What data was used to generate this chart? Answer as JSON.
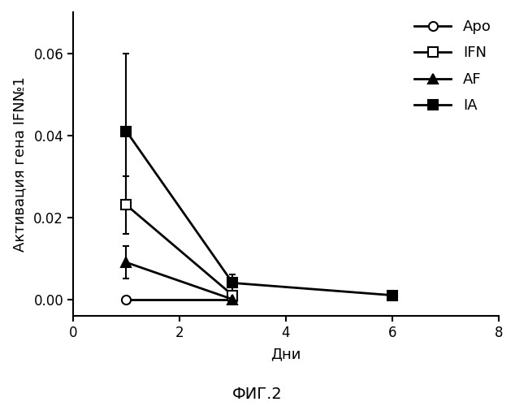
{
  "title": "ФИГ.2",
  "xlabel": "Дни",
  "ylabel": "Активация гена IFN№1",
  "xlim": [
    0,
    8
  ],
  "ylim": [
    -0.004,
    0.07
  ],
  "yticks": [
    0.0,
    0.02,
    0.04,
    0.06
  ],
  "xticks": [
    0,
    2,
    4,
    6,
    8
  ],
  "series": {
    "Apo": {
      "x": [
        1,
        3
      ],
      "y": [
        0.0,
        0.0
      ],
      "yerr_lo": [
        0.0,
        0.0
      ],
      "yerr_hi": [
        0.0,
        0.0
      ],
      "marker": "o",
      "filled": false,
      "label": "Apo"
    },
    "IFN": {
      "x": [
        1,
        3
      ],
      "y": [
        0.023,
        0.001
      ],
      "yerr_lo": [
        0.007,
        0.001
      ],
      "yerr_hi": [
        0.007,
        0.001
      ],
      "marker": "s",
      "filled": false,
      "label": "IFN"
    },
    "AF": {
      "x": [
        1,
        3
      ],
      "y": [
        0.009,
        0.0
      ],
      "yerr_lo": [
        0.004,
        0.0
      ],
      "yerr_hi": [
        0.004,
        0.0
      ],
      "marker": "^",
      "filled": true,
      "label": "AF"
    },
    "IA": {
      "x": [
        1,
        3,
        6
      ],
      "y": [
        0.041,
        0.004,
        0.001
      ],
      "yerr_lo": [
        0.019,
        0.002,
        0.001
      ],
      "yerr_hi": [
        0.019,
        0.002,
        0.001
      ],
      "marker": "s",
      "filled": true,
      "label": "IA"
    }
  },
  "line_color": "#000000",
  "background_color": "#ffffff",
  "fontsize_title": 14,
  "fontsize_labels": 13,
  "fontsize_ticks": 12,
  "fontsize_legend": 13,
  "markersize": 8,
  "linewidth": 2.0,
  "capsize": 3,
  "elinewidth": 1.5
}
